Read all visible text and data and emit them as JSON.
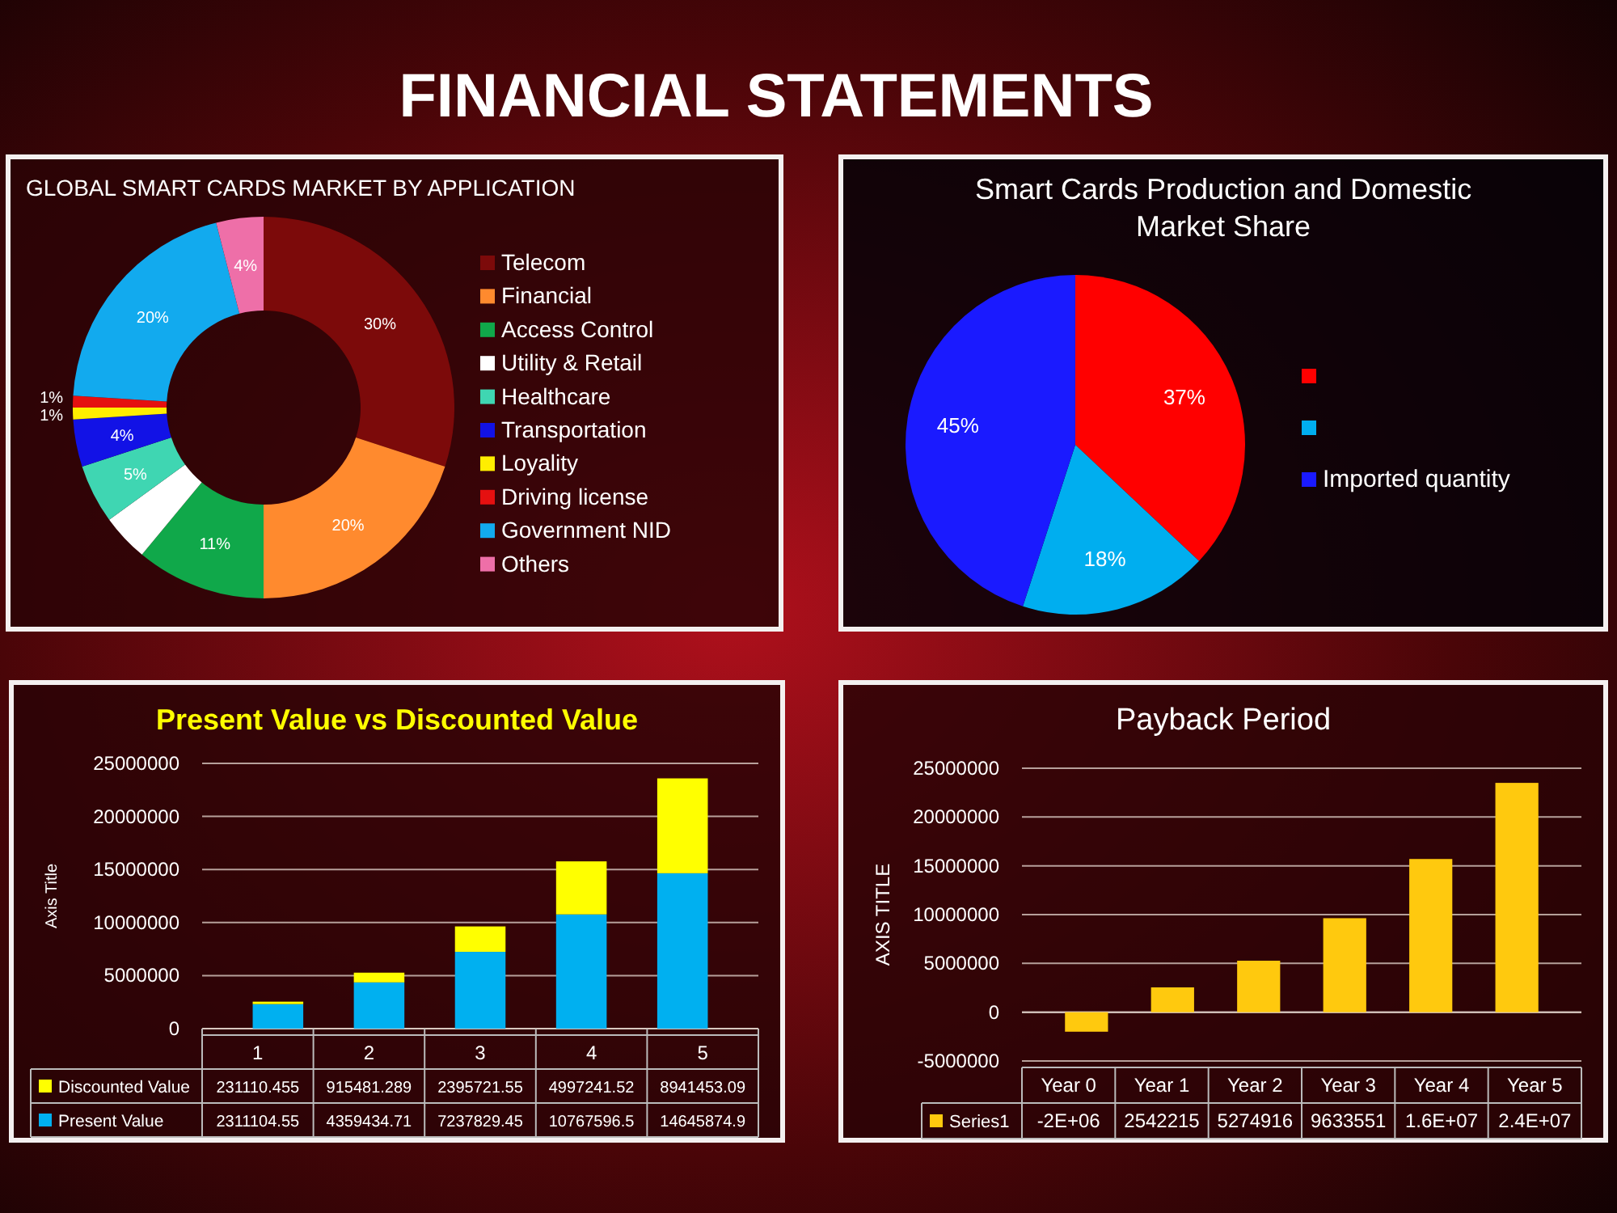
{
  "chart_data": [
    {
      "type": "donut",
      "title": "GLOBAL SMART CARDS MARKET BY APPLICATION",
      "annotations": [
        "FINANCIAL STATEMENTS"
      ],
      "categories": [
        "Telecom",
        "Financial",
        "Access Control",
        "Utility & Retail",
        "Healthcare",
        "Transportation",
        "Loyality",
        "Driving license",
        "Government NID",
        "Others"
      ],
      "values": [
        30,
        20,
        11,
        4,
        5,
        4,
        1,
        1,
        20,
        4
      ],
      "value_labels": [
        "30%",
        "20%",
        "11%",
        null,
        "5%",
        "4%",
        "1%",
        "1%",
        "20%",
        "4%"
      ],
      "colors": [
        "#7c0a0a",
        "#ff8a2e",
        "#10a84a",
        "#ffffff",
        "#3fd6b2",
        "#1212e6",
        "#ffee00",
        "#e51010",
        "#12aaee",
        "#ee6fa8"
      ],
      "legend": "right"
    },
    {
      "type": "pie",
      "title": "Smart Cards Production and Domestic Market Share",
      "categories": [
        null,
        null,
        "Imported quantity"
      ],
      "values": [
        37,
        18,
        45
      ],
      "value_labels": [
        "37%",
        "18%",
        "45%"
      ],
      "colors": [
        "#ff0000",
        "#00aeef",
        "#1a1aff"
      ],
      "legend": "right"
    },
    {
      "type": "bar",
      "title": "Present Value vs Discounted Value",
      "ylabel": "Axis Title",
      "categories": [
        "1",
        "2",
        "3",
        "4",
        "5"
      ],
      "stacked": true,
      "series": [
        {
          "name": "Present Value",
          "color": "#00b0f0",
          "values": [
            2311104.55,
            4359434.71,
            7237829.45,
            10767596.5,
            14645874.9
          ]
        },
        {
          "name": "Discounted Value",
          "color": "#ffff00",
          "values": [
            231110.455,
            915481.289,
            2395721.55,
            4997241.52,
            8941453.09
          ]
        }
      ],
      "ylim": [
        0,
        25000000
      ],
      "yticks": [
        0,
        5000000,
        10000000,
        15000000,
        20000000,
        25000000
      ],
      "grid": "y",
      "legend": "bottom",
      "data_labels": true
    },
    {
      "type": "bar",
      "title": "Payback Period",
      "ylabel": "AXIS TITLE",
      "categories": [
        "Year 0",
        "Year 1",
        "Year 2",
        "Year 3",
        "Year 4",
        "Year 5"
      ],
      "series": [
        {
          "name": "Series1",
          "color": "#ffc90e",
          "values": [
            -2000000,
            2542215,
            5274916,
            9633551,
            15700000,
            23500000
          ],
          "value_labels": [
            "-2E+06",
            "2542215",
            "5274916",
            "9633551",
            "1.6E+07",
            "2.4E+07"
          ]
        }
      ],
      "ylim": [
        -5000000,
        25000000
      ],
      "yticks": [
        -5000000,
        0,
        5000000,
        10000000,
        15000000,
        20000000,
        25000000
      ],
      "grid": "y",
      "legend": "bottom"
    }
  ]
}
